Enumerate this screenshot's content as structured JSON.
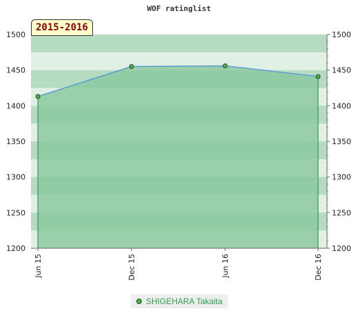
{
  "chart_data": {
    "type": "area",
    "title": "WOF ratinglist",
    "period_label": "2015-2016",
    "x": [
      "Jun 15",
      "Dec 15",
      "Jun 16",
      "Dec 16"
    ],
    "series": [
      {
        "name": "SHIGEHARA Takaita",
        "values": [
          1413,
          1455,
          1456,
          1441
        ]
      }
    ],
    "ylim": [
      1200,
      1500
    ],
    "y_ticks": [
      1200,
      1250,
      1300,
      1350,
      1400,
      1450,
      1500
    ],
    "grid": true,
    "legend_position": "bottom-center",
    "colors": {
      "line": "#5b9bd5",
      "area": "#8cc9a0",
      "marker": "#4caf50",
      "band_light": "#e0f0e4",
      "band_dark": "#b5dcc1",
      "label": "#2e9e4e"
    }
  }
}
